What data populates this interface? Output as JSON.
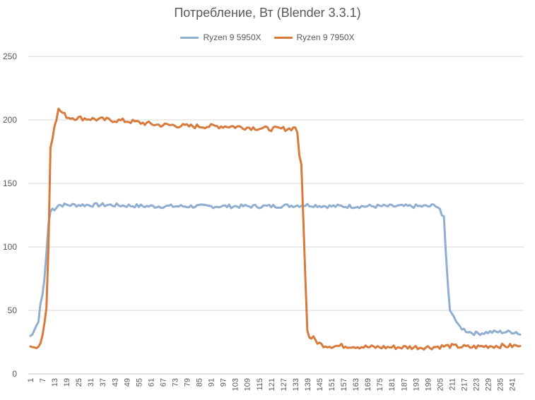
{
  "chart_data": {
    "type": "line",
    "title": "Потребление, Вт (Blender 3.3.1)",
    "xlabel": "",
    "ylabel": "",
    "ylim": [
      0,
      250
    ],
    "yticks": [
      0,
      50,
      100,
      150,
      200,
      250
    ],
    "xlim": [
      1,
      245
    ],
    "xticks": [
      1,
      7,
      13,
      19,
      25,
      31,
      37,
      43,
      49,
      55,
      61,
      67,
      73,
      79,
      85,
      91,
      97,
      103,
      109,
      115,
      121,
      127,
      133,
      139,
      145,
      151,
      157,
      163,
      169,
      175,
      181,
      187,
      193,
      199,
      205,
      211,
      217,
      223,
      229,
      235,
      241
    ],
    "grid": "horizontal",
    "legend": "top-center",
    "series": [
      {
        "name": "Ryzen 9 5950X",
        "color": "#8faed0",
        "points": [
          [
            1,
            30
          ],
          [
            2,
            31
          ],
          [
            4,
            38
          ],
          [
            5,
            41
          ],
          [
            6,
            55
          ],
          [
            7,
            62
          ],
          [
            8,
            75
          ],
          [
            9,
            95
          ],
          [
            10,
            118
          ],
          [
            11,
            128
          ],
          [
            12,
            130
          ],
          [
            13,
            130
          ],
          [
            15,
            133
          ],
          [
            20,
            133
          ],
          [
            30,
            133
          ],
          [
            40,
            133
          ],
          [
            60,
            132
          ],
          [
            80,
            132
          ],
          [
            100,
            132
          ],
          [
            120,
            132
          ],
          [
            140,
            133
          ],
          [
            150,
            132
          ],
          [
            170,
            132
          ],
          [
            190,
            132
          ],
          [
            200,
            132
          ],
          [
            203,
            133
          ],
          [
            205,
            130
          ],
          [
            206,
            125
          ],
          [
            207,
            124
          ],
          [
            208,
            95
          ],
          [
            209,
            70
          ],
          [
            210,
            50
          ],
          [
            212,
            45
          ],
          [
            214,
            38
          ],
          [
            216,
            36
          ],
          [
            218,
            34
          ],
          [
            220,
            33
          ],
          [
            222,
            32
          ],
          [
            225,
            32
          ],
          [
            230,
            33
          ],
          [
            235,
            33
          ],
          [
            240,
            33
          ],
          [
            243,
            33
          ],
          [
            245,
            31
          ]
        ],
        "noise": 1.5
      },
      {
        "name": "Ryzen 9 7950X",
        "color": "#d87a3c",
        "points": [
          [
            1,
            22
          ],
          [
            2,
            21
          ],
          [
            4,
            22
          ],
          [
            5,
            23
          ],
          [
            6,
            24
          ],
          [
            7,
            30
          ],
          [
            8,
            40
          ],
          [
            9,
            52
          ],
          [
            10,
            100
          ],
          [
            11,
            178
          ],
          [
            12,
            185
          ],
          [
            13,
            195
          ],
          [
            14,
            200
          ],
          [
            15,
            208
          ],
          [
            16,
            207
          ],
          [
            18,
            204
          ],
          [
            20,
            202
          ],
          [
            30,
            201
          ],
          [
            40,
            200
          ],
          [
            50,
            199
          ],
          [
            60,
            197
          ],
          [
            65,
            196
          ],
          [
            70,
            196
          ],
          [
            80,
            195
          ],
          [
            90,
            195
          ],
          [
            100,
            195
          ],
          [
            110,
            194
          ],
          [
            120,
            193
          ],
          [
            125,
            193
          ],
          [
            130,
            193
          ],
          [
            133,
            194
          ],
          [
            134,
            190
          ],
          [
            135,
            172
          ],
          [
            136,
            165
          ],
          [
            137,
            120
          ],
          [
            138,
            75
          ],
          [
            139,
            34
          ],
          [
            140,
            29
          ],
          [
            142,
            28
          ],
          [
            144,
            25
          ],
          [
            146,
            23
          ],
          [
            150,
            22
          ],
          [
            160,
            22
          ],
          [
            170,
            21
          ],
          [
            180,
            21
          ],
          [
            190,
            21
          ],
          [
            200,
            21
          ],
          [
            210,
            22
          ],
          [
            220,
            21
          ],
          [
            230,
            22
          ],
          [
            240,
            22
          ],
          [
            245,
            22
          ]
        ],
        "noise": 1.8
      }
    ]
  }
}
